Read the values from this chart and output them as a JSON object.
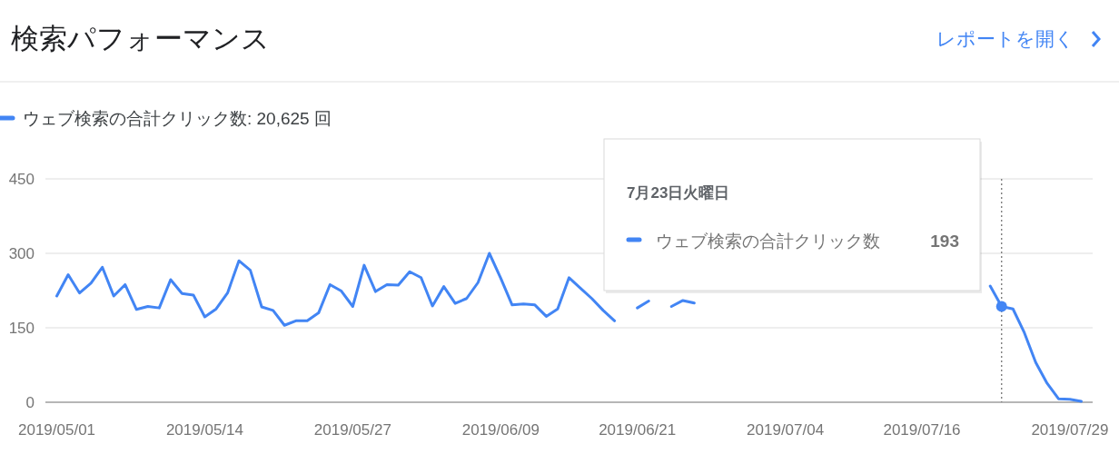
{
  "chart_data": {
    "type": "line",
    "title": "検索パフォーマンス",
    "annotations": [
      "レポートを開く",
      "7月23日火曜日",
      "ウェブ検索の合計クリック数",
      "193"
    ],
    "x": [
      "2019-05-01",
      "2019-05-02",
      "2019-05-03",
      "2019-05-04",
      "2019-05-05",
      "2019-05-06",
      "2019-05-07",
      "2019-05-08",
      "2019-05-09",
      "2019-05-10",
      "2019-05-11",
      "2019-05-12",
      "2019-05-13",
      "2019-05-14",
      "2019-05-15",
      "2019-05-16",
      "2019-05-17",
      "2019-05-18",
      "2019-05-19",
      "2019-05-20",
      "2019-05-21",
      "2019-05-22",
      "2019-05-23",
      "2019-05-24",
      "2019-05-25",
      "2019-05-26",
      "2019-05-27",
      "2019-05-28",
      "2019-05-29",
      "2019-05-30",
      "2019-05-31",
      "2019-06-01",
      "2019-06-02",
      "2019-06-03",
      "2019-06-04",
      "2019-06-05",
      "2019-06-06",
      "2019-06-07",
      "2019-06-08",
      "2019-06-09",
      "2019-06-10",
      "2019-06-11",
      "2019-06-12",
      "2019-06-13",
      "2019-06-14",
      "2019-06-15",
      "2019-06-16",
      "2019-06-17",
      "2019-06-18",
      "2019-06-19",
      "2019-06-20",
      "2019-06-21",
      "2019-06-22",
      "2019-06-23",
      "2019-06-24",
      "2019-06-25",
      "2019-06-26",
      "2019-06-27",
      "2019-06-28",
      "2019-06-29",
      "2019-06-30",
      "2019-07-01",
      "2019-07-02",
      "2019-07-03",
      "2019-07-04",
      "2019-07-05",
      "2019-07-06",
      "2019-07-07",
      "2019-07-08",
      "2019-07-09",
      "2019-07-10",
      "2019-07-11",
      "2019-07-12",
      "2019-07-13",
      "2019-07-14",
      "2019-07-15",
      "2019-07-16",
      "2019-07-17",
      "2019-07-18",
      "2019-07-19",
      "2019-07-20",
      "2019-07-21",
      "2019-07-22",
      "2019-07-23",
      "2019-07-24",
      "2019-07-25",
      "2019-07-26",
      "2019-07-27",
      "2019-07-28",
      "2019-07-29",
      "2019-07-30"
    ],
    "series": [
      {
        "name": "ウェブ検索の合計クリック数: 20,625 回",
        "color": "#4285f4",
        "values": [
          214,
          257,
          220,
          240,
          272,
          214,
          237,
          187,
          193,
          190,
          247,
          219,
          216,
          172,
          188,
          220,
          285,
          266,
          192,
          185,
          155,
          164,
          164,
          180,
          237,
          224,
          193,
          276,
          223,
          237,
          236,
          263,
          251,
          194,
          233,
          199,
          209,
          241,
          300,
          250,
          196,
          198,
          196,
          173,
          188,
          251,
          230,
          209,
          185,
          164,
          null,
          190,
          204,
          null,
          193,
          205,
          200,
          null,
          null,
          null,
          null,
          null,
          null,
          null,
          null,
          null,
          null,
          null,
          null,
          null,
          null,
          null,
          null,
          null,
          null,
          null,
          null,
          null,
          null,
          null,
          null,
          null,
          234,
          193,
          188,
          140,
          80,
          38,
          7,
          6,
          2
        ]
      }
    ],
    "xlim": [
      "2019-04-30",
      "2019-07-31"
    ],
    "xticks": [
      {
        "value": "2019-05-01",
        "label": "2019/05/01"
      },
      {
        "value": "2019-05-14",
        "label": "2019/05/14"
      },
      {
        "value": "2019-05-27",
        "label": "2019/05/27"
      },
      {
        "value": "2019-06-09",
        "label": "2019/06/09"
      },
      {
        "value": "2019-06-21",
        "label": "2019/06/21"
      },
      {
        "value": "2019-07-04",
        "label": "2019/07/04"
      },
      {
        "value": "2019-07-16",
        "label": "2019/07/16"
      },
      {
        "value": "2019-07-29",
        "label": "2019/07/29"
      }
    ],
    "ylim": [
      0,
      450
    ],
    "yticks": [
      0,
      150,
      300,
      450
    ],
    "ref_lines": [
      {
        "axis": "x",
        "value": "2019-07-23",
        "color": "#757575",
        "line_style": "dotted"
      }
    ],
    "grid": "y",
    "legend": "top left",
    "marker": "none",
    "line_style": "solid"
  }
}
